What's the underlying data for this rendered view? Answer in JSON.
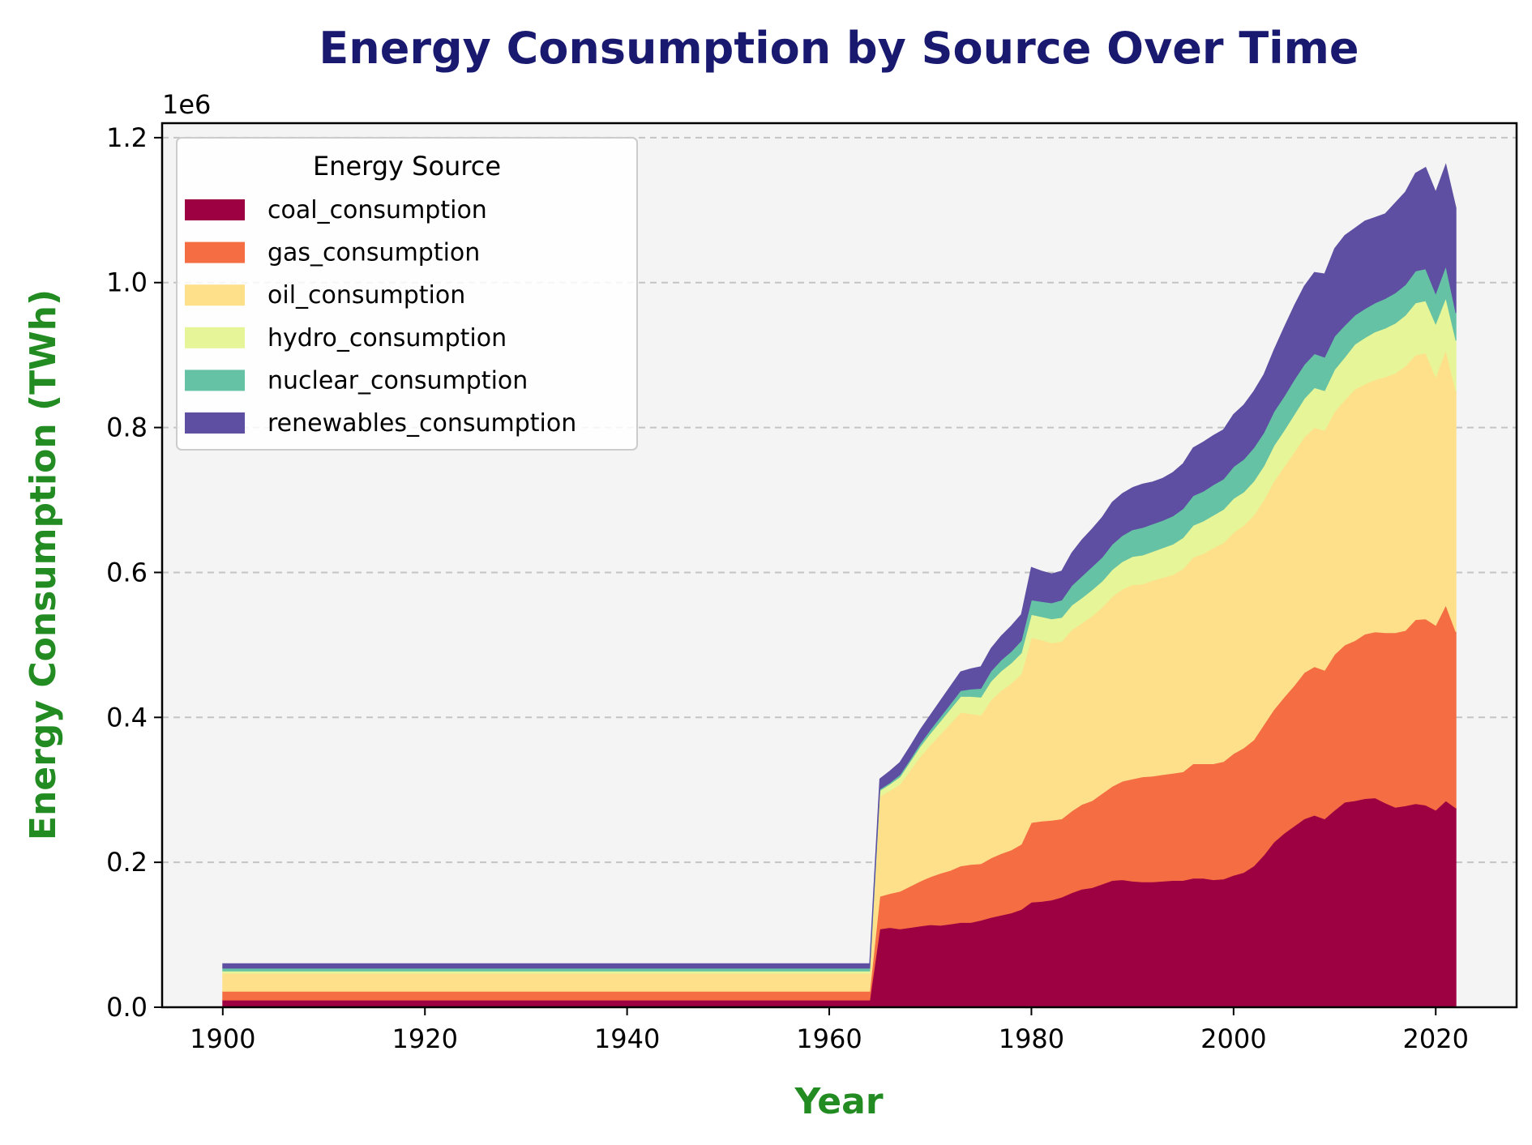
{
  "chart_data": {
    "type": "area",
    "stacked": true,
    "title": "Energy Consumption by Source Over Time",
    "xlabel": "Year",
    "ylabel": "Energy Consumption (TWh)",
    "y_offset_label": "1e6",
    "xlim": [
      1894,
      2028
    ],
    "ylim": [
      0,
      1.22
    ],
    "x_ticks": [
      "1900",
      "1920",
      "1940",
      "1960",
      "1980",
      "2000",
      "2020"
    ],
    "y_ticks": [
      "0.0",
      "0.2",
      "0.4",
      "0.6",
      "0.8",
      "1.0",
      "1.2"
    ],
    "grid": "y-dashed",
    "legend": {
      "title": "Energy Source",
      "placement": "top-left"
    },
    "x": [
      1900,
      1964,
      1965,
      1966,
      1967,
      1968,
      1969,
      1970,
      1971,
      1972,
      1973,
      1974,
      1975,
      1976,
      1977,
      1978,
      1979,
      1980,
      1981,
      1982,
      1983,
      1984,
      1985,
      1986,
      1987,
      1988,
      1989,
      1990,
      1991,
      1992,
      1993,
      1994,
      1995,
      1996,
      1997,
      1998,
      1999,
      2000,
      2001,
      2002,
      2003,
      2004,
      2005,
      2006,
      2007,
      2008,
      2009,
      2010,
      2011,
      2012,
      2013,
      2014,
      2015,
      2016,
      2017,
      2018,
      2019,
      2020,
      2021,
      2022
    ],
    "series": [
      {
        "name": "coal_consumption",
        "color": "#9e0142",
        "values": [
          0.01,
          0.01,
          0.108,
          0.11,
          0.108,
          0.11,
          0.112,
          0.114,
          0.113,
          0.115,
          0.117,
          0.117,
          0.12,
          0.124,
          0.127,
          0.13,
          0.135,
          0.145,
          0.146,
          0.148,
          0.152,
          0.158,
          0.163,
          0.165,
          0.17,
          0.175,
          0.176,
          0.174,
          0.173,
          0.173,
          0.174,
          0.175,
          0.175,
          0.178,
          0.178,
          0.176,
          0.177,
          0.182,
          0.186,
          0.195,
          0.21,
          0.228,
          0.24,
          0.25,
          0.26,
          0.265,
          0.26,
          0.272,
          0.283,
          0.285,
          0.288,
          0.289,
          0.282,
          0.276,
          0.278,
          0.281,
          0.279,
          0.272,
          0.285,
          0.275
        ]
      },
      {
        "name": "gas_consumption",
        "color": "#f46d43",
        "values": [
          0.012,
          0.012,
          0.045,
          0.047,
          0.052,
          0.057,
          0.062,
          0.066,
          0.072,
          0.074,
          0.078,
          0.08,
          0.078,
          0.082,
          0.085,
          0.087,
          0.09,
          0.11,
          0.111,
          0.11,
          0.108,
          0.113,
          0.117,
          0.12,
          0.125,
          0.13,
          0.136,
          0.141,
          0.145,
          0.146,
          0.147,
          0.148,
          0.15,
          0.158,
          0.158,
          0.16,
          0.162,
          0.168,
          0.172,
          0.174,
          0.18,
          0.183,
          0.188,
          0.194,
          0.202,
          0.205,
          0.205,
          0.215,
          0.217,
          0.221,
          0.227,
          0.229,
          0.235,
          0.241,
          0.242,
          0.254,
          0.257,
          0.255,
          0.27,
          0.243
        ]
      },
      {
        "name": "oil_consumption",
        "color": "#fee08b",
        "values": [
          0.025,
          0.025,
          0.138,
          0.142,
          0.148,
          0.16,
          0.172,
          0.182,
          0.192,
          0.203,
          0.212,
          0.208,
          0.205,
          0.218,
          0.225,
          0.23,
          0.235,
          0.255,
          0.25,
          0.245,
          0.245,
          0.25,
          0.25,
          0.255,
          0.257,
          0.262,
          0.265,
          0.268,
          0.266,
          0.27,
          0.272,
          0.274,
          0.28,
          0.285,
          0.29,
          0.298,
          0.302,
          0.305,
          0.307,
          0.31,
          0.31,
          0.315,
          0.318,
          0.322,
          0.325,
          0.33,
          0.331,
          0.335,
          0.338,
          0.347,
          0.345,
          0.348,
          0.353,
          0.358,
          0.365,
          0.365,
          0.367,
          0.343,
          0.352,
          0.332
        ]
      },
      {
        "name": "hydro_consumption",
        "color": "#e6f598",
        "values": [
          0.003,
          0.003,
          0.008,
          0.009,
          0.01,
          0.012,
          0.014,
          0.016,
          0.018,
          0.02,
          0.022,
          0.024,
          0.025,
          0.026,
          0.027,
          0.028,
          0.029,
          0.032,
          0.032,
          0.033,
          0.033,
          0.034,
          0.035,
          0.036,
          0.036,
          0.037,
          0.038,
          0.039,
          0.04,
          0.04,
          0.041,
          0.042,
          0.043,
          0.044,
          0.045,
          0.045,
          0.046,
          0.047,
          0.046,
          0.047,
          0.047,
          0.049,
          0.05,
          0.052,
          0.053,
          0.055,
          0.055,
          0.058,
          0.059,
          0.062,
          0.064,
          0.066,
          0.067,
          0.069,
          0.07,
          0.072,
          0.072,
          0.073,
          0.072,
          0.07
        ]
      },
      {
        "name": "nuclear_consumption",
        "color": "#66c2a5",
        "values": [
          0.004,
          0.004,
          0.002,
          0.002,
          0.003,
          0.003,
          0.004,
          0.005,
          0.006,
          0.007,
          0.008,
          0.01,
          0.012,
          0.014,
          0.015,
          0.016,
          0.017,
          0.02,
          0.021,
          0.022,
          0.024,
          0.027,
          0.03,
          0.032,
          0.033,
          0.035,
          0.036,
          0.037,
          0.038,
          0.038,
          0.038,
          0.039,
          0.04,
          0.041,
          0.041,
          0.042,
          0.042,
          0.044,
          0.045,
          0.046,
          0.046,
          0.047,
          0.047,
          0.048,
          0.047,
          0.047,
          0.046,
          0.046,
          0.044,
          0.04,
          0.04,
          0.04,
          0.041,
          0.042,
          0.042,
          0.044,
          0.044,
          0.042,
          0.044,
          0.038
        ]
      },
      {
        "name": "renewables_consumption",
        "color": "#5e4fa2",
        "values": [
          0.006,
          0.006,
          0.014,
          0.016,
          0.017,
          0.018,
          0.019,
          0.02,
          0.022,
          0.024,
          0.026,
          0.028,
          0.03,
          0.031,
          0.033,
          0.035,
          0.036,
          0.045,
          0.042,
          0.04,
          0.04,
          0.045,
          0.05,
          0.052,
          0.055,
          0.058,
          0.058,
          0.058,
          0.06,
          0.058,
          0.058,
          0.06,
          0.062,
          0.066,
          0.068,
          0.068,
          0.068,
          0.072,
          0.075,
          0.078,
          0.08,
          0.085,
          0.095,
          0.102,
          0.108,
          0.112,
          0.115,
          0.121,
          0.124,
          0.12,
          0.121,
          0.118,
          0.117,
          0.124,
          0.128,
          0.135,
          0.14,
          0.14,
          0.14,
          0.145
        ]
      }
    ]
  }
}
